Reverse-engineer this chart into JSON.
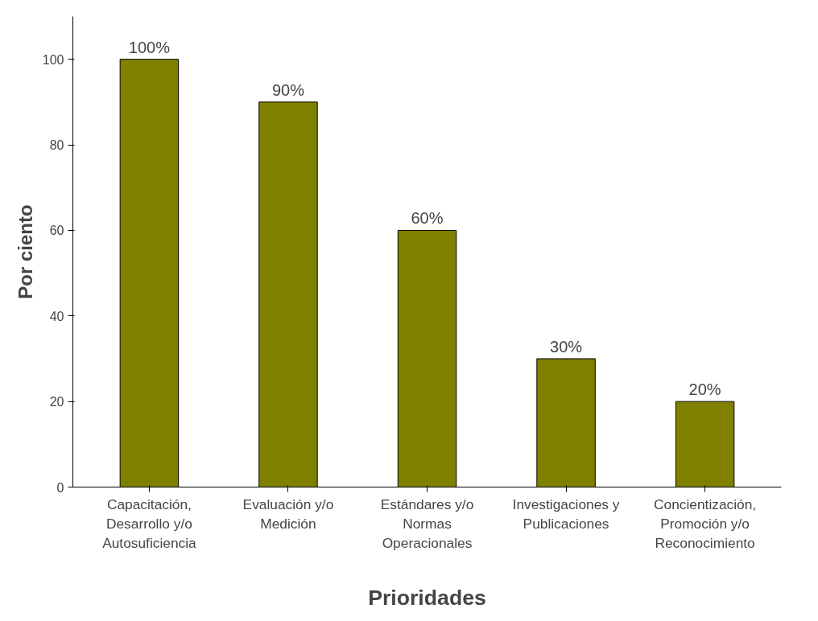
{
  "chart_data": {
    "type": "bar",
    "xlabel": "Prioridades",
    "ylabel": "Por ciento",
    "categories": [
      "Capacitación, Desarrollo y/o Autosuficiencia",
      "Evaluación y/o Medición",
      "Estándares y/o Normas Operacionales",
      "Investigaciones y Publicaciones",
      "Concientización, Promoción y/o Reconocimiento"
    ],
    "values": [
      100,
      90,
      60,
      30,
      20
    ],
    "value_labels": [
      "100%",
      "90%",
      "60%",
      "30%",
      "20%"
    ],
    "color": "#808000",
    "ylim": [
      0,
      110
    ],
    "yticks": [
      0,
      20,
      40,
      60,
      80,
      100
    ],
    "grid": false
  }
}
